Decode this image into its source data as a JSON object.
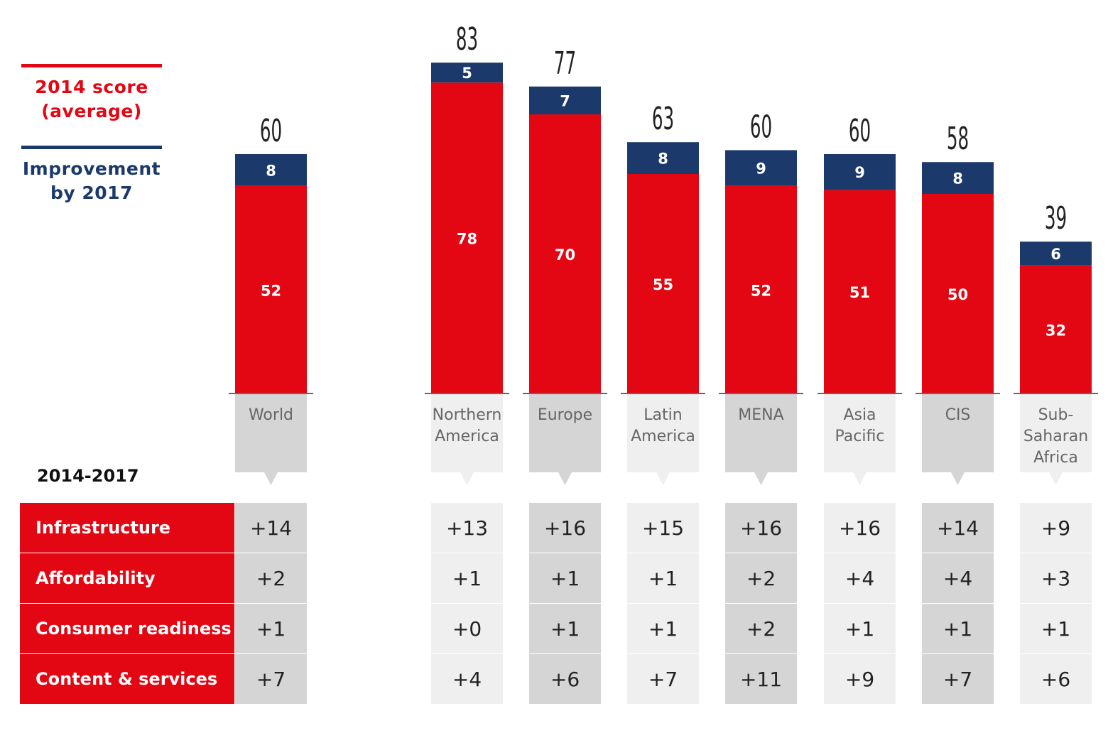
{
  "colors": {
    "base": "#e30613",
    "improvement": "#1b3a6b",
    "label_dark": "#d6d5d6",
    "label_light": "#efefef",
    "row_label_bg": "#e30613"
  },
  "legend": {
    "base_label": [
      "2014 score",
      "(average)"
    ],
    "improvement_label": [
      "Improvement",
      "by 2017"
    ]
  },
  "table": {
    "period": "2014-2017",
    "rows": [
      {
        "label": "Infrastructure",
        "values": [
          "+14",
          "+13",
          "+16",
          "+15",
          "+16",
          "+16",
          "+14",
          "+9"
        ]
      },
      {
        "label": "Affordability",
        "values": [
          "+2",
          "+1",
          "+1",
          "+1",
          "+2",
          "+4",
          "+4",
          "+3"
        ]
      },
      {
        "label": "Consumer readiness",
        "values": [
          "+1",
          "+0",
          "+1",
          "+1",
          "+2",
          "+1",
          "+1",
          "+1"
        ]
      },
      {
        "label": "Content & services",
        "values": [
          "+7",
          "+4",
          "+6",
          "+7",
          "+11",
          "+9",
          "+7",
          "+6"
        ]
      }
    ]
  },
  "chart_data": {
    "type": "bar",
    "stacked": true,
    "categories": [
      [
        "World"
      ],
      [
        "Northern",
        "America"
      ],
      [
        "Europe"
      ],
      [
        "Latin",
        "America"
      ],
      [
        "MENA"
      ],
      [
        "Asia",
        "Pacific"
      ],
      [
        "CIS"
      ],
      [
        "Sub-",
        "Saharan",
        "Africa"
      ]
    ],
    "series": [
      {
        "name": "2014 score (average)",
        "values": [
          52,
          78,
          70,
          55,
          52,
          51,
          50,
          32
        ]
      },
      {
        "name": "Improvement by 2017",
        "values": [
          8,
          5,
          7,
          8,
          9,
          9,
          8,
          6
        ]
      }
    ],
    "totals": [
      60,
      83,
      77,
      63,
      60,
      60,
      58,
      39
    ],
    "legend_position": "top-left",
    "grid": false
  }
}
